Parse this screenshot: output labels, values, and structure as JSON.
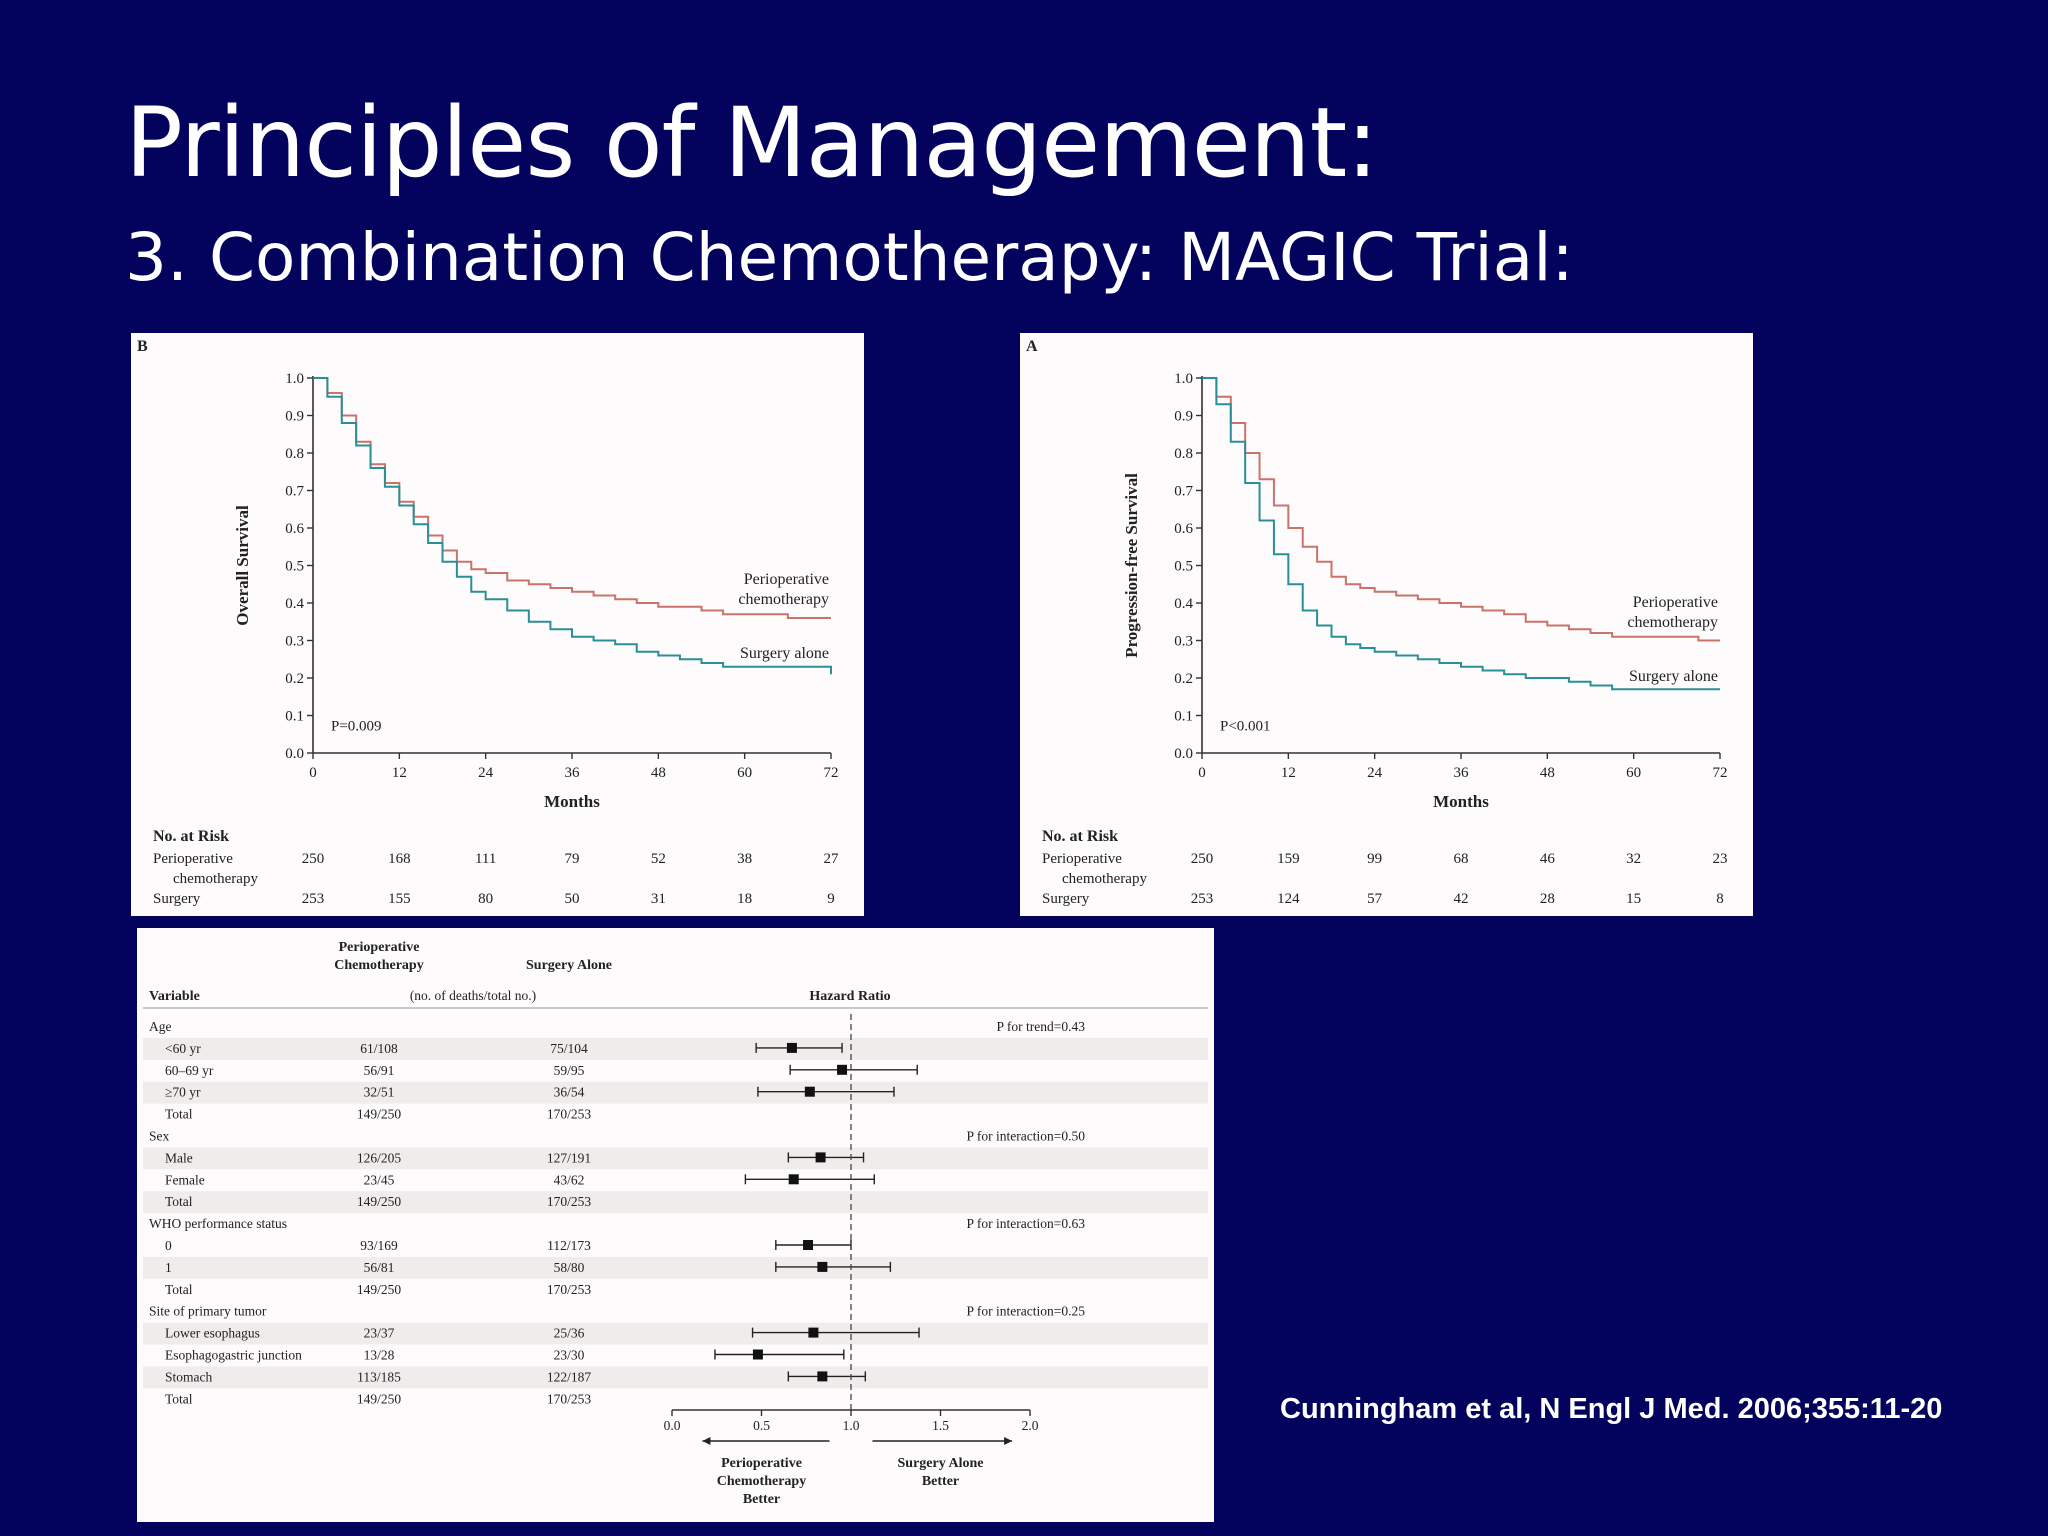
{
  "title": "Principles of Management:",
  "subtitle": "3. Combination Chemotherapy: MAGIC Trial:",
  "citation": "Cunningham et al, N Engl J Med. 2006;355:11-20",
  "colors": {
    "background": "#03035e",
    "perioperative": "#c9736b",
    "surgery": "#2a8f96",
    "panel": "#fdfbfb"
  },
  "chart_data": [
    {
      "type": "line",
      "panel_label": "B",
      "ylabel": "Overall Survival",
      "xlabel": "Months",
      "xlim": [
        0,
        72
      ],
      "ylim": [
        0.0,
        1.0
      ],
      "xticks": [
        0,
        12,
        24,
        36,
        48,
        60,
        72
      ],
      "yticks": [
        "0.0",
        "0.1",
        "0.2",
        "0.3",
        "0.4",
        "0.5",
        "0.6",
        "0.7",
        "0.8",
        "0.9",
        "1.0"
      ],
      "pvalue": "P=0.009",
      "series": [
        {
          "name": "Perioperative chemotherapy",
          "label_lines": [
            "Perioperative",
            "chemotherapy"
          ],
          "x": [
            0,
            2,
            4,
            6,
            8,
            10,
            12,
            14,
            16,
            18,
            20,
            22,
            24,
            27,
            30,
            33,
            36,
            39,
            42,
            45,
            48,
            51,
            54,
            57,
            60,
            63,
            66,
            69,
            72
          ],
          "y": [
            1.0,
            0.96,
            0.9,
            0.83,
            0.77,
            0.72,
            0.67,
            0.63,
            0.58,
            0.54,
            0.51,
            0.49,
            0.48,
            0.46,
            0.45,
            0.44,
            0.43,
            0.42,
            0.41,
            0.4,
            0.39,
            0.39,
            0.38,
            0.37,
            0.37,
            0.37,
            0.36,
            0.36,
            0.36
          ]
        },
        {
          "name": "Surgery alone",
          "label_lines": [
            "Surgery alone"
          ],
          "x": [
            0,
            2,
            4,
            6,
            8,
            10,
            12,
            14,
            16,
            18,
            20,
            22,
            24,
            27,
            30,
            33,
            36,
            39,
            42,
            45,
            48,
            51,
            54,
            57,
            60,
            63,
            66,
            69,
            72
          ],
          "y": [
            1.0,
            0.95,
            0.88,
            0.82,
            0.76,
            0.71,
            0.66,
            0.61,
            0.56,
            0.51,
            0.47,
            0.43,
            0.41,
            0.38,
            0.35,
            0.33,
            0.31,
            0.3,
            0.29,
            0.27,
            0.26,
            0.25,
            0.24,
            0.23,
            0.23,
            0.23,
            0.23,
            0.23,
            0.21
          ]
        }
      ],
      "at_risk": {
        "heading": "No. at Risk",
        "rows": [
          {
            "label_lines": [
              "Perioperative",
              "chemotherapy"
            ],
            "values": [
              "250",
              "168",
              "111",
              "79",
              "52",
              "38",
              "27"
            ]
          },
          {
            "label_lines": [
              "Surgery"
            ],
            "values": [
              "253",
              "155",
              "80",
              "50",
              "31",
              "18",
              "9"
            ]
          }
        ]
      }
    },
    {
      "type": "line",
      "panel_label": "A",
      "ylabel": "Progression-free Survival",
      "xlabel": "Months",
      "xlim": [
        0,
        72
      ],
      "ylim": [
        0.0,
        1.0
      ],
      "xticks": [
        0,
        12,
        24,
        36,
        48,
        60,
        72
      ],
      "yticks": [
        "0.0",
        "0.1",
        "0.2",
        "0.3",
        "0.4",
        "0.5",
        "0.6",
        "0.7",
        "0.8",
        "0.9",
        "1.0"
      ],
      "pvalue": "P<0.001",
      "series": [
        {
          "name": "Perioperative chemotherapy",
          "label_lines": [
            "Perioperative",
            "chemotherapy"
          ],
          "x": [
            0,
            2,
            4,
            6,
            8,
            10,
            12,
            14,
            16,
            18,
            20,
            22,
            24,
            27,
            30,
            33,
            36,
            39,
            42,
            45,
            48,
            51,
            54,
            57,
            60,
            63,
            66,
            69,
            72
          ],
          "y": [
            1.0,
            0.95,
            0.88,
            0.8,
            0.73,
            0.66,
            0.6,
            0.55,
            0.51,
            0.47,
            0.45,
            0.44,
            0.43,
            0.42,
            0.41,
            0.4,
            0.39,
            0.38,
            0.37,
            0.35,
            0.34,
            0.33,
            0.32,
            0.31,
            0.31,
            0.31,
            0.31,
            0.3,
            0.3
          ]
        },
        {
          "name": "Surgery alone",
          "label_lines": [
            "Surgery alone"
          ],
          "x": [
            0,
            2,
            4,
            6,
            8,
            10,
            12,
            14,
            16,
            18,
            20,
            22,
            24,
            27,
            30,
            33,
            36,
            39,
            42,
            45,
            48,
            51,
            54,
            57,
            60,
            63,
            66,
            69,
            72
          ],
          "y": [
            1.0,
            0.93,
            0.83,
            0.72,
            0.62,
            0.53,
            0.45,
            0.38,
            0.34,
            0.31,
            0.29,
            0.28,
            0.27,
            0.26,
            0.25,
            0.24,
            0.23,
            0.22,
            0.21,
            0.2,
            0.2,
            0.19,
            0.18,
            0.17,
            0.17,
            0.17,
            0.17,
            0.17,
            0.17
          ]
        }
      ],
      "at_risk": {
        "heading": "No. at Risk",
        "rows": [
          {
            "label_lines": [
              "Perioperative",
              "chemotherapy"
            ],
            "values": [
              "250",
              "159",
              "99",
              "68",
              "46",
              "32",
              "23"
            ]
          },
          {
            "label_lines": [
              "Surgery"
            ],
            "values": [
              "253",
              "124",
              "57",
              "42",
              "28",
              "15",
              "8"
            ]
          }
        ]
      }
    },
    {
      "type": "table",
      "subtype": "forest",
      "headers": {
        "variable": "Variable",
        "perioperative": "Perioperative Chemotherapy",
        "surgery": "Surgery Alone",
        "units": "(no. of deaths/total no.)",
        "hr": "Hazard Ratio"
      },
      "xaxis": {
        "xlim": [
          0.0,
          2.0
        ],
        "ticks": [
          "0.0",
          "0.5",
          "1.0",
          "1.5",
          "2.0"
        ],
        "reference": 1.0,
        "left_label": [
          "Perioperative",
          "Chemotherapy",
          "Better"
        ],
        "right_label": [
          "Surgery Alone",
          "Better"
        ]
      },
      "groups": [
        {
          "name": "Age",
          "p": "P for trend=0.43",
          "rows": [
            {
              "label": "<60 yr",
              "peri": "61/108",
              "surg": "75/104",
              "hr": 0.67,
              "lo": 0.47,
              "hi": 0.95
            },
            {
              "label": "60–69 yr",
              "peri": "56/91",
              "surg": "59/95",
              "hr": 0.95,
              "lo": 0.66,
              "hi": 1.37
            },
            {
              "label": "≥70 yr",
              "peri": "32/51",
              "surg": "36/54",
              "hr": 0.77,
              "lo": 0.48,
              "hi": 1.24
            },
            {
              "label": "Total",
              "peri": "149/250",
              "surg": "170/253"
            }
          ]
        },
        {
          "name": "Sex",
          "p": "P for interaction=0.50",
          "rows": [
            {
              "label": "Male",
              "peri": "126/205",
              "surg": "127/191",
              "hr": 0.83,
              "lo": 0.65,
              "hi": 1.07
            },
            {
              "label": "Female",
              "peri": "23/45",
              "surg": "43/62",
              "hr": 0.68,
              "lo": 0.41,
              "hi": 1.13
            },
            {
              "label": "Total",
              "peri": "149/250",
              "surg": "170/253"
            }
          ]
        },
        {
          "name": "WHO performance status",
          "p": "P for interaction=0.63",
          "rows": [
            {
              "label": "0",
              "peri": "93/169",
              "surg": "112/173",
              "hr": 0.76,
              "lo": 0.58,
              "hi": 1.0
            },
            {
              "label": "1",
              "peri": "56/81",
              "surg": "58/80",
              "hr": 0.84,
              "lo": 0.58,
              "hi": 1.22
            },
            {
              "label": "Total",
              "peri": "149/250",
              "surg": "170/253"
            }
          ]
        },
        {
          "name": "Site of primary tumor",
          "p": "P for interaction=0.25",
          "rows": [
            {
              "label": "Lower esophagus",
              "peri": "23/37",
              "surg": "25/36",
              "hr": 0.79,
              "lo": 0.45,
              "hi": 1.38
            },
            {
              "label": "Esophagogastric junction",
              "peri": "13/28",
              "surg": "23/30",
              "hr": 0.48,
              "lo": 0.24,
              "hi": 0.96
            },
            {
              "label": "Stomach",
              "peri": "113/185",
              "surg": "122/187",
              "hr": 0.84,
              "lo": 0.65,
              "hi": 1.08
            },
            {
              "label": "Total",
              "peri": "149/250",
              "surg": "170/253"
            }
          ]
        }
      ]
    }
  ]
}
